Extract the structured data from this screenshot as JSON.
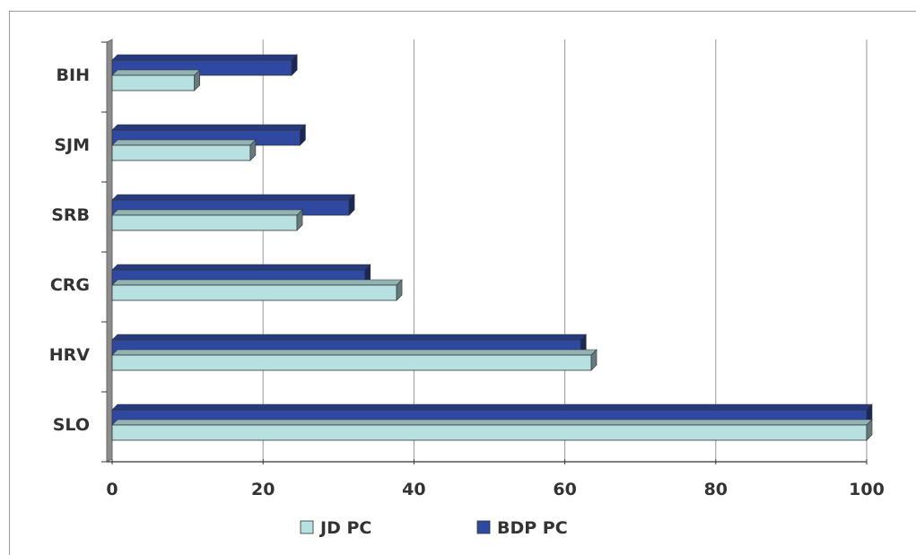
{
  "chart_data": {
    "type": "bar",
    "orientation": "horizontal",
    "categories": [
      "SLO",
      "HRV",
      "CRG",
      "SRB",
      "SJM",
      "BIH"
    ],
    "series": [
      {
        "name": "JD PC",
        "color": "#b7e0e0",
        "values": [
          100,
          63.5,
          37.7,
          24.5,
          18.3,
          10.9
        ]
      },
      {
        "name": "BDP PC",
        "color": "#2f48a0",
        "values": [
          100,
          62.1,
          33.5,
          31.4,
          24.9,
          23.8
        ]
      }
    ],
    "xlim": [
      0,
      100
    ],
    "xticks": [
      "0",
      "20",
      "40",
      "60",
      "80",
      "100"
    ],
    "grid": "vertical",
    "legend": "bottom",
    "title": "",
    "xlabel": "",
    "ylabel": ""
  }
}
